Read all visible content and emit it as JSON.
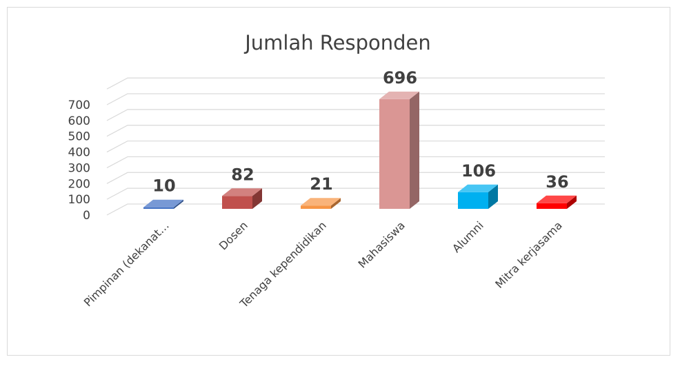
{
  "chart_data": {
    "type": "bar",
    "title": "Jumlah Responden",
    "categories": [
      "Pimpinan (dekanat…",
      "Dosen",
      "Tenaga kependidikan",
      "Mahasiswa",
      "Alumni",
      "Mitra kerjasama"
    ],
    "values": [
      10,
      82,
      21,
      696,
      106,
      36
    ],
    "ylim": [
      0,
      700
    ],
    "yticks": [
      0,
      100,
      200,
      300,
      400,
      500,
      600,
      700
    ],
    "grid": true,
    "three_d": true,
    "data_labels": true,
    "colors": [
      "#4472c4",
      "#c0504d",
      "#f79646",
      "#da9694",
      "#00b0f0",
      "#ff0000"
    ]
  }
}
